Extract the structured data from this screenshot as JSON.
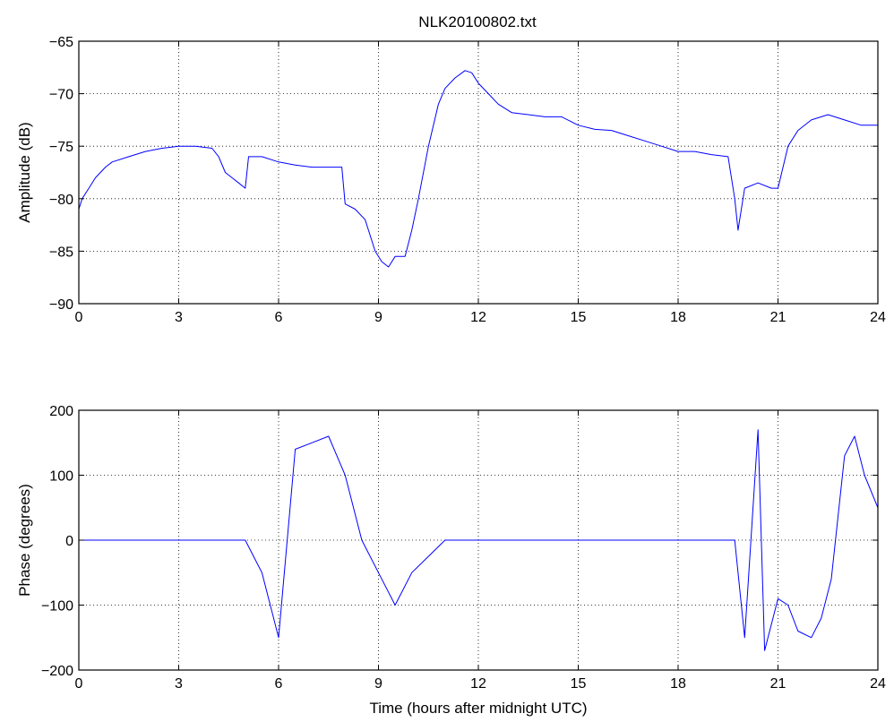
{
  "figure_title": "NLK20100802.txt",
  "chart_data": [
    {
      "type": "line",
      "title": "NLK20100802.txt",
      "xlabel": "",
      "ylabel": "Amplitude (dB)",
      "xlim": [
        0,
        24
      ],
      "ylim": [
        -90,
        -65
      ],
      "xticks": [
        0,
        3,
        6,
        9,
        12,
        15,
        18,
        21,
        24
      ],
      "yticks": [
        -90,
        -85,
        -80,
        -75,
        -70,
        -65
      ],
      "grid": true,
      "series_color": "#0000ff",
      "series": [
        {
          "x": [
            0,
            0.1,
            0.3,
            0.5,
            0.8,
            1.0,
            1.5,
            2.0,
            2.5,
            3.0,
            3.5,
            4.0,
            4.2,
            4.4,
            4.6,
            4.8,
            5.0,
            5.1,
            5.5,
            6.0,
            6.5,
            7.0,
            7.5,
            7.9,
            8.0,
            8.3,
            8.6,
            8.9,
            9.1,
            9.3,
            9.5,
            9.8,
            10.0,
            10.2,
            10.5,
            10.8,
            11.0,
            11.3,
            11.6,
            11.8,
            12.0,
            12.3,
            12.6,
            13.0,
            13.5,
            14.0,
            14.5,
            15.0,
            15.5,
            16.0,
            16.5,
            17.0,
            17.5,
            18.0,
            18.5,
            19.0,
            19.5,
            19.7,
            19.8,
            20.0,
            20.4,
            20.8,
            21.0,
            21.3,
            21.6,
            22.0,
            22.5,
            23.0,
            23.5,
            24.0
          ],
          "y": [
            -81,
            -80,
            -79,
            -78,
            -77,
            -76.5,
            -76,
            -75.5,
            -75.2,
            -75,
            -75,
            -75.2,
            -76,
            -77.5,
            -78,
            -78.5,
            -79,
            -76,
            -76,
            -76.5,
            -76.8,
            -77,
            -77,
            -77,
            -80.5,
            -81,
            -82,
            -85,
            -86,
            -86.5,
            -85.5,
            -85.5,
            -83,
            -80,
            -75,
            -71,
            -69.5,
            -68.5,
            -67.8,
            -68,
            -69,
            -70,
            -71,
            -71.8,
            -72,
            -72.2,
            -72.2,
            -73,
            -73.4,
            -73.5,
            -74,
            -74.5,
            -75,
            -75.5,
            -75.5,
            -75.8,
            -76,
            -80,
            -83,
            -79,
            -78.5,
            -79,
            -79,
            -75,
            -73.5,
            -72.5,
            -72,
            -72.5,
            -73,
            -73
          ]
        }
      ]
    },
    {
      "type": "line",
      "title": "",
      "xlabel": "Time (hours after midnight UTC)",
      "ylabel": "Phase (degrees)",
      "xlim": [
        0,
        24
      ],
      "ylim": [
        -200,
        200
      ],
      "xticks": [
        0,
        3,
        6,
        9,
        12,
        15,
        18,
        21,
        24
      ],
      "yticks": [
        -200,
        -100,
        0,
        100,
        200
      ],
      "grid": true,
      "series_color": "#0000ff",
      "series": [
        {
          "x": [
            0,
            1.0,
            2.0,
            3.0,
            4.0,
            5.0,
            5.5,
            6.0,
            6.5,
            7.0,
            7.5,
            8.0,
            8.5,
            9.0,
            9.5,
            10.0,
            11.0,
            12.0,
            13.0,
            14.0,
            15.0,
            16.0,
            17.0,
            18.0,
            19.0,
            19.7,
            20.0,
            20.4,
            20.6,
            21.0,
            21.3,
            21.6,
            22.0,
            22.3,
            22.6,
            23.0,
            23.3,
            23.6,
            24.0
          ],
          "y": [
            0,
            0,
            0,
            0,
            0,
            0,
            -50,
            -150,
            140,
            150,
            160,
            100,
            0,
            -50,
            -100,
            -50,
            0,
            0,
            0,
            0,
            0,
            0,
            0,
            0,
            0,
            0,
            -150,
            170,
            -170,
            -90,
            -100,
            -140,
            -150,
            -120,
            -60,
            130,
            160,
            100,
            50
          ]
        }
      ]
    }
  ]
}
